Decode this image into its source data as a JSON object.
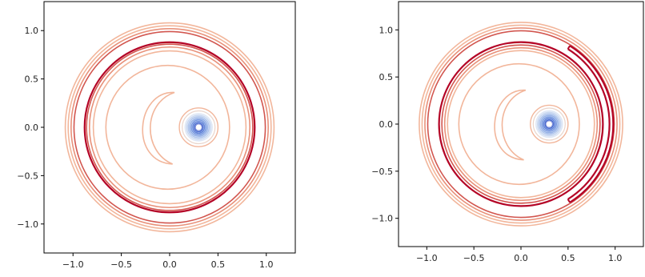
{
  "colors": {
    "light_salmon": "#f2b69b",
    "salmon": "#e8917a",
    "red_mid": "#d2564f",
    "crimson": "#b40426",
    "center_blue": "#3b4cc0",
    "center_light": "#c7d7f0",
    "axes": "#000000"
  },
  "chart_data": [
    {
      "type": "contour",
      "title": "",
      "xlabel": "",
      "ylabel": "",
      "xlim": [
        -1.3,
        1.3
      ],
      "ylim": [
        -1.3,
        1.3
      ],
      "xticks": [
        -1.0,
        -0.5,
        0.0,
        0.5,
        1.0
      ],
      "yticks": [
        -1.0,
        -0.5,
        0.0,
        0.5,
        1.0
      ],
      "xtick_labels": [
        "−1.0",
        "−0.5",
        "0.0",
        "0.5",
        "1.0"
      ],
      "ytick_labels": [
        "−1.0",
        "−0.5",
        "0.0",
        "0.5",
        "1.0"
      ],
      "grid": false,
      "colormap": "coolwarm",
      "center_point": [
        0.3,
        0.0
      ],
      "outer_rings": [
        {
          "r": 1.08,
          "color": "light_salmon"
        },
        {
          "r": 1.05,
          "color": "light_salmon"
        },
        {
          "r": 1.02,
          "color": "salmon"
        },
        {
          "r": 0.99,
          "color": "red_mid"
        },
        {
          "r": 0.88,
          "color": "crimson"
        },
        {
          "r": 0.86,
          "color": "red_mid"
        },
        {
          "r": 0.83,
          "color": "salmon"
        },
        {
          "r": 0.79,
          "color": "light_salmon"
        }
      ],
      "inner_blob": {
        "r": 0.64,
        "color": "light_salmon"
      },
      "crescent": {
        "color": "light_salmon"
      },
      "gap_arc": null
    },
    {
      "type": "contour",
      "title": "",
      "xlabel": "",
      "ylabel": "",
      "xlim": [
        -1.3,
        1.3
      ],
      "ylim": [
        -1.3,
        1.3
      ],
      "xticks": [
        -1.0,
        -0.5,
        0.0,
        0.5,
        1.0
      ],
      "yticks": [
        -1.0,
        -0.5,
        0.0,
        0.5,
        1.0
      ],
      "xtick_labels": [
        "−1.0",
        "−0.5",
        "0.0",
        "0.5",
        "1.0"
      ],
      "ytick_labels": [
        "−1.0",
        "−0.5",
        "0.0",
        "0.5",
        "1.0"
      ],
      "grid": false,
      "colormap": "coolwarm",
      "center_point": [
        0.3,
        0.0
      ],
      "outer_rings": [
        {
          "r": 1.08,
          "color": "light_salmon"
        },
        {
          "r": 1.05,
          "color": "light_salmon"
        },
        {
          "r": 1.02,
          "color": "salmon"
        },
        {
          "r": 0.99,
          "color": "red_mid"
        },
        {
          "r": 0.87,
          "color": "crimson"
        },
        {
          "r": 0.84,
          "color": "red_mid"
        },
        {
          "r": 0.81,
          "color": "salmon"
        },
        {
          "r": 0.78,
          "color": "light_salmon"
        }
      ],
      "inner_blob": {
        "r": 0.64,
        "color": "light_salmon"
      },
      "crescent": {
        "color": "light_salmon"
      },
      "gap_arc": {
        "r_outer": 0.98,
        "r_inner": 0.94,
        "start_deg": -58,
        "end_deg": 58,
        "color": "crimson"
      }
    }
  ]
}
